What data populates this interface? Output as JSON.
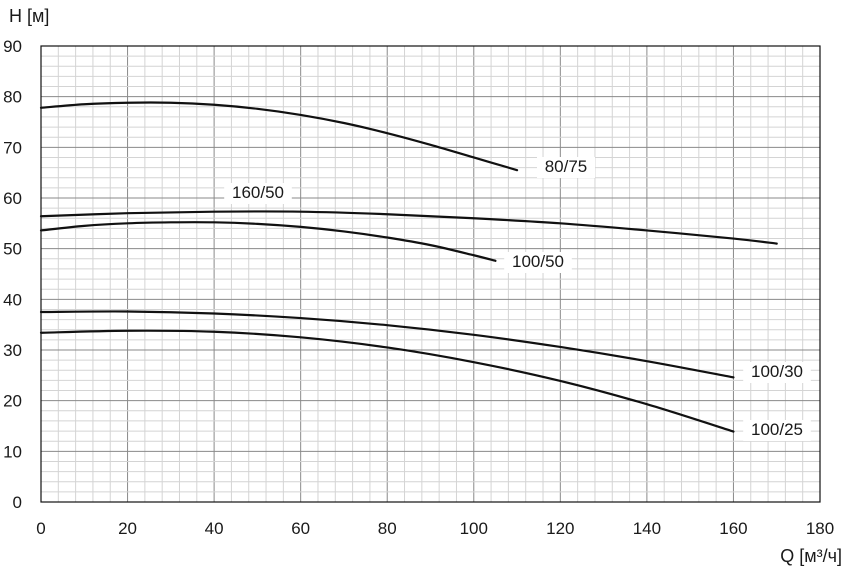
{
  "chart_data": {
    "type": "line",
    "xlabel": "Q [м³/ч]",
    "ylabel": "H [м]",
    "xlim": [
      0,
      180
    ],
    "ylim": [
      0,
      90
    ],
    "x_ticks": [
      "0",
      "20",
      "40",
      "60",
      "80",
      "100",
      "120",
      "140",
      "160",
      "180"
    ],
    "y_ticks": [
      "0",
      "10",
      "20",
      "30",
      "40",
      "50",
      "60",
      "70",
      "80",
      "90"
    ],
    "grid": true,
    "series": [
      {
        "name": "80/75",
        "x": [
          0,
          10,
          20,
          30,
          40,
          50,
          60,
          70,
          80,
          90,
          100,
          110
        ],
        "y": [
          77.8,
          78.5,
          78.8,
          78.8,
          78.4,
          77.6,
          76.4,
          74.8,
          72.8,
          70.5,
          68.0,
          65.5
        ]
      },
      {
        "name": "160/50",
        "x": [
          0,
          20,
          40,
          60,
          80,
          100,
          120,
          140,
          160,
          170
        ],
        "y": [
          56.4,
          57.0,
          57.3,
          57.3,
          56.8,
          56.0,
          55.0,
          53.6,
          52.0,
          51.0
        ]
      },
      {
        "name": "100/50",
        "x": [
          0,
          10,
          20,
          30,
          40,
          50,
          60,
          70,
          80,
          90,
          100,
          105
        ],
        "y": [
          53.6,
          54.5,
          55.0,
          55.2,
          55.2,
          54.9,
          54.3,
          53.4,
          52.2,
          50.7,
          48.7,
          47.6
        ]
      },
      {
        "name": "100/30",
        "x": [
          0,
          20,
          40,
          60,
          80,
          100,
          120,
          140,
          160
        ],
        "y": [
          37.5,
          37.6,
          37.2,
          36.3,
          34.9,
          33.0,
          30.6,
          27.8,
          24.6
        ]
      },
      {
        "name": "100/25",
        "x": [
          0,
          20,
          40,
          60,
          80,
          100,
          120,
          140,
          160
        ],
        "y": [
          33.4,
          33.8,
          33.6,
          32.5,
          30.5,
          27.6,
          23.9,
          19.3,
          13.9
        ]
      }
    ]
  }
}
